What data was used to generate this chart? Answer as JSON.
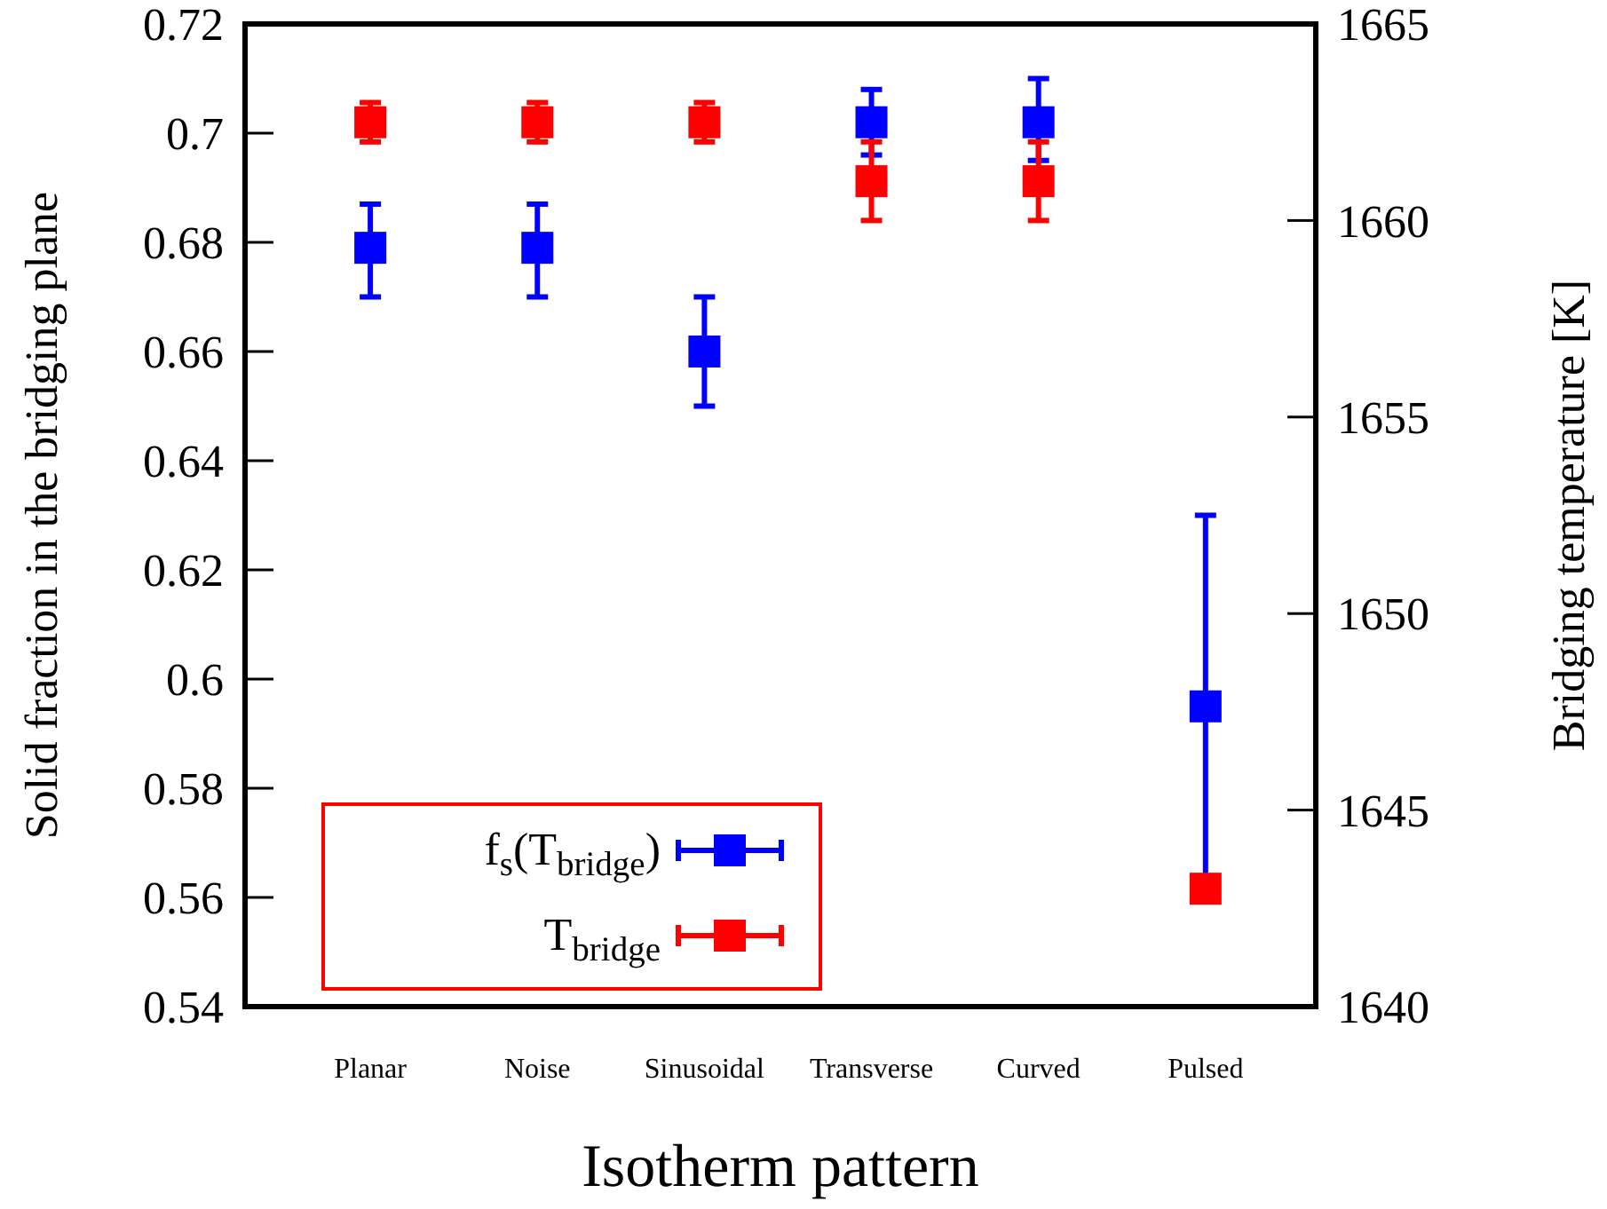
{
  "chart_data": {
    "type": "scatter",
    "xlabel": "Isotherm pattern",
    "ylabel": "Solid fraction in the bridging plane",
    "y2label": "Bridging temperature [K]",
    "categories": [
      "Planar",
      "Noise",
      "Sinusoidal",
      "Transverse",
      "Curved",
      "Pulsed"
    ],
    "ylim": [
      0.54,
      0.72
    ],
    "yticks": [
      0.54,
      0.56,
      0.58,
      0.6,
      0.62,
      0.64,
      0.66,
      0.68,
      0.7,
      0.72
    ],
    "y2lim": [
      1640,
      1665
    ],
    "y2ticks": [
      1640,
      1645,
      1650,
      1655,
      1660,
      1665
    ],
    "marker": "square",
    "legend": "bottom left",
    "grid": false,
    "series": [
      {
        "name": "f$_{s}$(T$_{bridge}$)",
        "color": "#0000ff",
        "values": [
          0.679,
          0.679,
          0.66,
          0.702,
          0.702,
          0.595
        ],
        "errors": [
          [
            0.67,
            0.687
          ],
          [
            0.67,
            0.687
          ],
          [
            0.65,
            0.67
          ],
          [
            0.696,
            0.708
          ],
          [
            0.695,
            0.71
          ],
          0.035
        ]
      },
      {
        "name": "T$_{bridge}$",
        "color": "#ff0000",
        "axis": "y2",
        "values": [
          1662.5,
          1662.5,
          1662.5,
          1661,
          1661,
          1643
        ],
        "errors": [
          0.5,
          0.5,
          0.5,
          1,
          1,
          null
        ]
      }
    ]
  }
}
